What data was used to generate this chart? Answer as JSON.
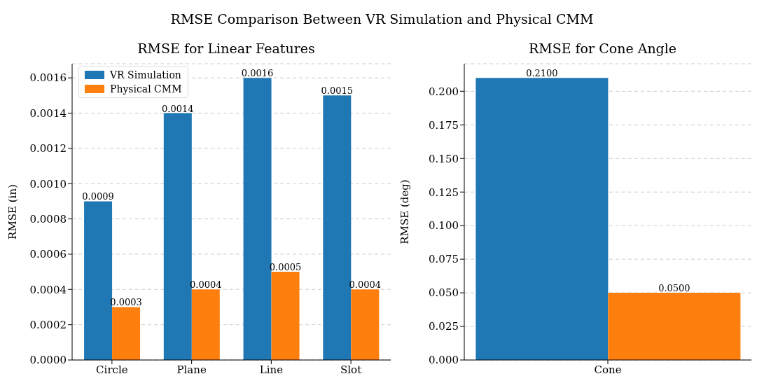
{
  "chart_data": [
    {
      "type": "bar",
      "title": "RMSE for Linear Features",
      "ylabel": "RMSE (in)",
      "annotations": [
        "RMSE Comparison Between VR Simulation and Physical CMM"
      ],
      "categories": [
        "Circle",
        "Plane",
        "Line",
        "Slot"
      ],
      "series": [
        {
          "name": "VR Simulation",
          "color": "#1f77b4",
          "values": [
            0.0009,
            0.0014,
            0.0016,
            0.0015
          ],
          "value_labels": [
            "0.0009",
            "0.0014",
            "0.0016",
            "0.0015"
          ]
        },
        {
          "name": "Physical CMM",
          "color": "#ff7f0e",
          "values": [
            0.0003,
            0.0004,
            0.0005,
            0.0004
          ],
          "value_labels": [
            "0.0003",
            "0.0004",
            "0.0005",
            "0.0004"
          ]
        }
      ],
      "ylim": [
        0,
        0.00168
      ],
      "yticks": [
        {
          "value": 0,
          "label": "0.0000"
        },
        {
          "value": 0.0002,
          "label": "0.0002"
        },
        {
          "value": 0.0004,
          "label": "0.0004"
        },
        {
          "value": 0.0006,
          "label": "0.0006"
        },
        {
          "value": 0.0008,
          "label": "0.0008"
        },
        {
          "value": 0.001,
          "label": "0.0010"
        },
        {
          "value": 0.0012,
          "label": "0.0012"
        },
        {
          "value": 0.0014,
          "label": "0.0014"
        },
        {
          "value": 0.0016,
          "label": "0.0016"
        }
      ],
      "grid": "y",
      "legend": "top left"
    },
    {
      "type": "bar",
      "title": "RMSE for Cone Angle",
      "ylabel": "RMSE (deg)",
      "categories": [
        "Cone"
      ],
      "series": [
        {
          "color": "#1f77b4",
          "values": [
            0.21
          ],
          "value_labels": [
            "0.2100"
          ]
        },
        {
          "color": "#ff7f0e",
          "values": [
            0.05
          ],
          "value_labels": [
            "0.0500"
          ]
        }
      ],
      "ylim": [
        0,
        0.2205
      ],
      "yticks": [
        {
          "value": 0,
          "label": "0.000"
        },
        {
          "value": 0.025,
          "label": "0.025"
        },
        {
          "value": 0.05,
          "label": "0.050"
        },
        {
          "value": 0.075,
          "label": "0.075"
        },
        {
          "value": 0.1,
          "label": "0.100"
        },
        {
          "value": 0.125,
          "label": "0.125"
        },
        {
          "value": 0.15,
          "label": "0.150"
        },
        {
          "value": 0.175,
          "label": "0.175"
        },
        {
          "value": 0.2,
          "label": "0.200"
        }
      ],
      "grid": "y",
      "legend": false
    }
  ]
}
